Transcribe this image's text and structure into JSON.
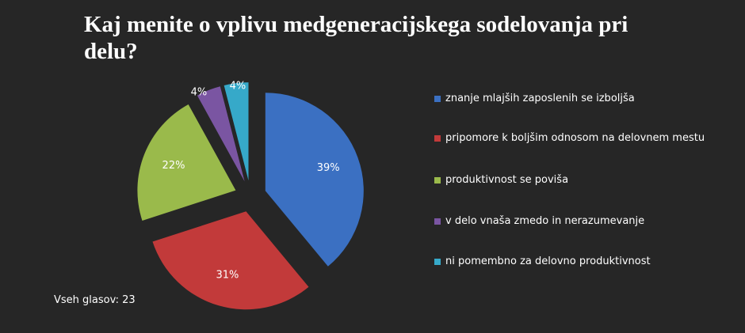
{
  "chart_data": {
    "type": "pie",
    "title": "Kaj menite o vplivu medgeneracijskega sodelovanja pri delu?",
    "categories": [
      "znanje mlajših zaposlenih se izboljša",
      "pripomore k boljšim odnosom na delovnem mestu",
      "produktivnost se poviša",
      "v delo vnaša zmedo in nerazumevanje",
      "ni pomembno za delovno produktivnost"
    ],
    "values": [
      39,
      31,
      22,
      4,
      4
    ],
    "value_labels": [
      "39%",
      "31%",
      "22%",
      "4%",
      "4%"
    ],
    "colors": [
      "#3b70c2",
      "#c23a3a",
      "#9aba4b",
      "#7a55a2",
      "#36a9c9"
    ],
    "legend": "right",
    "footnote": "Vseh glasov: 23"
  }
}
